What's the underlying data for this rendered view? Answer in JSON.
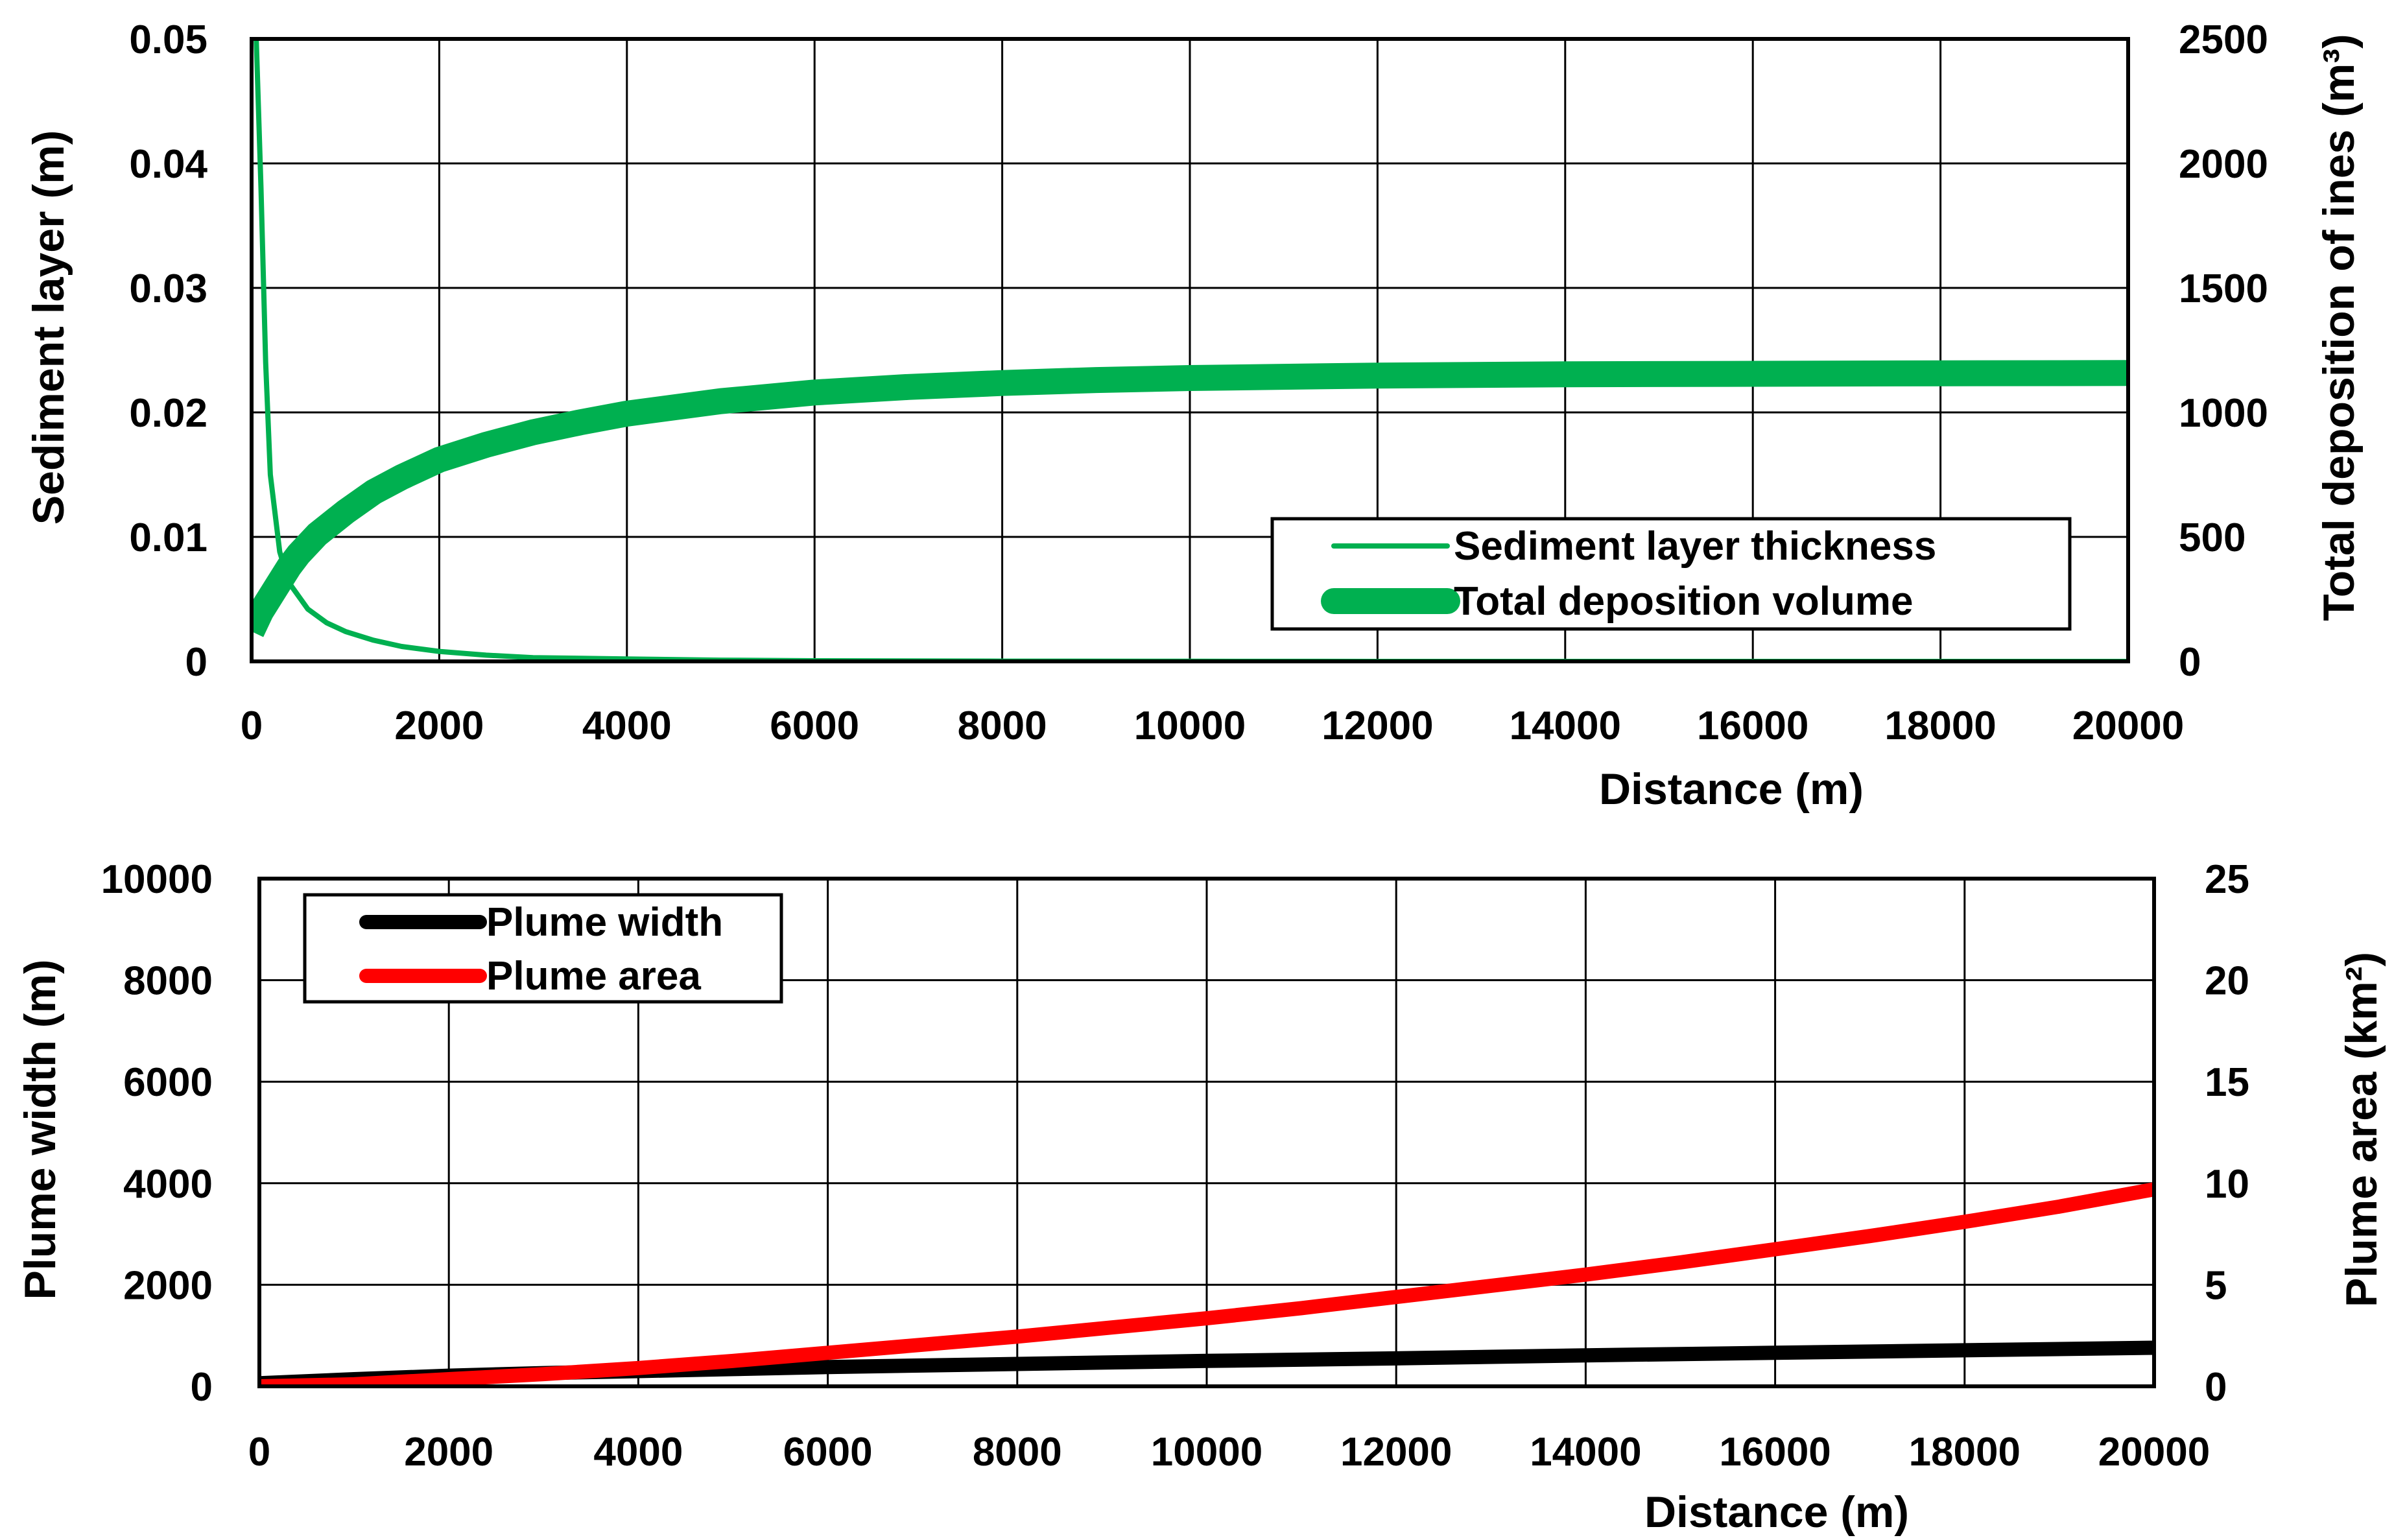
{
  "chart_data": [
    {
      "type": "line",
      "xlabel": "Distance (m)",
      "ylabel_left": "Sediment layer (m)",
      "ylabel_right": "Total deposition of ines (m³)",
      "xlim": [
        0,
        20000
      ],
      "ylim_left": [
        0,
        0.05
      ],
      "ylim_right": [
        0,
        2500
      ],
      "x_ticks": [
        0,
        2000,
        4000,
        6000,
        8000,
        10000,
        12000,
        14000,
        16000,
        18000,
        20000
      ],
      "x_tick_labels": [
        "0",
        "2000",
        "4000",
        "6000",
        "8000",
        "10000",
        "12000",
        "14000",
        "16000",
        "18000",
        "20000"
      ],
      "y_ticks_left": [
        0,
        0.01,
        0.02,
        0.03,
        0.04,
        0.05
      ],
      "y_tick_labels_left": [
        "0",
        "0.01",
        "0.02",
        "0.03",
        "0.04",
        "0.05"
      ],
      "y_ticks_right": [
        0,
        500,
        1000,
        1500,
        2000,
        2500
      ],
      "y_tick_labels_right": [
        "0",
        "500",
        "1000",
        "1500",
        "2000",
        "2500"
      ],
      "grid": true,
      "legend_position": "bottom-right",
      "series": [
        {
          "name": "Sediment layer thickness",
          "axis": "left",
          "color": "#00B050",
          "x": [
            50,
            100,
            150,
            200,
            300,
            400,
            600,
            800,
            1000,
            1300,
            1600,
            2000,
            2500,
            3000,
            4000,
            5000,
            6000,
            8000,
            10000,
            12000,
            15000,
            20000
          ],
          "y": [
            0.05,
            0.038,
            0.024,
            0.015,
            0.0088,
            0.0063,
            0.0042,
            0.0031,
            0.0024,
            0.0017,
            0.0012,
            0.0008,
            0.0005,
            0.0003,
            0.0002,
            0.0001,
            5e-05,
            2e-05,
            1e-05,
            0.0,
            0.0,
            0.0
          ]
        },
        {
          "name": "Total deposition volume",
          "axis": "right",
          "color": "#00B050",
          "x": [
            0,
            100,
            200,
            300,
            400,
            500,
            700,
            1000,
            1300,
            1600,
            2000,
            2500,
            3000,
            3500,
            4000,
            5000,
            6000,
            7000,
            8000,
            9000,
            10000,
            12000,
            14000,
            16000,
            18000,
            20000
          ],
          "y": [
            120,
            200,
            260,
            320,
            380,
            430,
            510,
            600,
            680,
            740,
            810,
            870,
            920,
            960,
            995,
            1045,
            1080,
            1102,
            1118,
            1130,
            1138,
            1148,
            1153,
            1155,
            1157,
            1158
          ]
        }
      ]
    },
    {
      "type": "line",
      "xlabel": "Distance (m)",
      "ylabel_left": "Plume width (m)",
      "ylabel_right": "Plume area (km²)",
      "xlim": [
        0,
        20000
      ],
      "ylim_left": [
        0,
        10000
      ],
      "ylim_right": [
        0,
        25
      ],
      "x_ticks": [
        0,
        2000,
        4000,
        6000,
        8000,
        10000,
        12000,
        14000,
        16000,
        18000,
        20000
      ],
      "x_tick_labels": [
        "0",
        "2000",
        "4000",
        "6000",
        "8000",
        "10000",
        "12000",
        "14000",
        "16000",
        "18000",
        "20000"
      ],
      "y_ticks_left": [
        0,
        2000,
        4000,
        6000,
        8000,
        10000
      ],
      "y_tick_labels_left": [
        "0",
        "2000",
        "4000",
        "6000",
        "8000",
        "10000"
      ],
      "y_ticks_right": [
        0,
        5,
        10,
        15,
        20,
        25
      ],
      "y_tick_labels_right": [
        "0",
        "5",
        "10",
        "15",
        "20",
        "25"
      ],
      "grid": true,
      "legend_position": "top-left",
      "series": [
        {
          "name": "Plume width",
          "axis": "left",
          "color": "#000000",
          "x": [
            0,
            1000,
            2000,
            3000,
            4000,
            5000,
            6000,
            8000,
            10000,
            12000,
            14000,
            16000,
            18000,
            20000
          ],
          "y": [
            60,
            140,
            210,
            260,
            300,
            340,
            380,
            440,
            500,
            550,
            610,
            660,
            710,
            760
          ]
        },
        {
          "name": "Plume area",
          "axis": "right",
          "color": "#FF0000",
          "x": [
            0,
            1000,
            2000,
            3000,
            4000,
            5000,
            6000,
            7000,
            8000,
            9000,
            10000,
            11000,
            12000,
            13000,
            14000,
            15000,
            16000,
            17000,
            18000,
            19000,
            20000
          ],
          "y": [
            0,
            0.1,
            0.35,
            0.6,
            0.9,
            1.25,
            1.65,
            2.05,
            2.45,
            2.9,
            3.35,
            3.85,
            4.4,
            4.95,
            5.5,
            6.1,
            6.75,
            7.4,
            8.1,
            8.85,
            9.7
          ]
        }
      ]
    }
  ]
}
